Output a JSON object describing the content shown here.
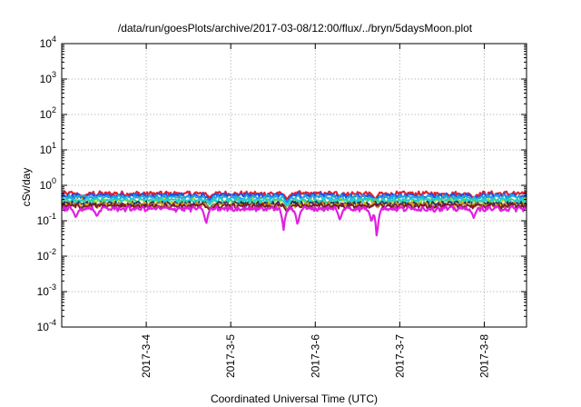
{
  "chart_data": {
    "type": "line",
    "title": "/data/run/goesPlots/archive/2017-03-08/12:00/flux/../bryn/5daysMoon.plot",
    "xlabel": "Coordinated Universal Time (UTC)",
    "ylabel": "cSv/day",
    "yscale": "log",
    "ylim": [
      0.0001,
      10000
    ],
    "y_ticks": [
      {
        "value": 10000,
        "base": "10",
        "exp": "4"
      },
      {
        "value": 1000,
        "base": "10",
        "exp": "3"
      },
      {
        "value": 100,
        "base": "10",
        "exp": "2"
      },
      {
        "value": 10,
        "base": "10",
        "exp": "1"
      },
      {
        "value": 1,
        "base": "10",
        "exp": "0"
      },
      {
        "value": 0.1,
        "base": "10",
        "exp": "-1"
      },
      {
        "value": 0.01,
        "base": "10",
        "exp": "-2"
      },
      {
        "value": 0.001,
        "base": "10",
        "exp": "-3"
      },
      {
        "value": 0.0001,
        "base": "10",
        "exp": "-4"
      }
    ],
    "xlim": [
      "2017-03-03 00:00",
      "2017-03-08 12:00"
    ],
    "x_ticks": [
      {
        "value": "2017-03-04 00:00",
        "label": "2017-3-4"
      },
      {
        "value": "2017-03-05 00:00",
        "label": "2017-3-5"
      },
      {
        "value": "2017-03-06 00:00",
        "label": "2017-3-6"
      },
      {
        "value": "2017-03-07 00:00",
        "label": "2017-3-7"
      },
      {
        "value": "2017-03-08 00:00",
        "label": "2017-3-8"
      }
    ],
    "grid": true,
    "series": [
      {
        "color": "#e8202a",
        "base": 0.58,
        "dips": [
          [
            "2017-03-03 06:00",
            0.42
          ],
          [
            "2017-03-04 18:00",
            0.45
          ],
          [
            "2017-03-05 16:00",
            0.4
          ],
          [
            "2017-03-06 17:00",
            0.4
          ],
          [
            "2017-03-07 21:00",
            0.42
          ]
        ]
      },
      {
        "color": "#2050e8",
        "base": 0.52,
        "dips": [
          [
            "2017-03-03 06:00",
            0.36
          ],
          [
            "2017-03-04 18:00",
            0.38
          ],
          [
            "2017-03-05 16:00",
            0.33
          ],
          [
            "2017-03-06 17:00",
            0.34
          ],
          [
            "2017-03-07 21:00",
            0.36
          ]
        ]
      },
      {
        "color": "#1ea8e0",
        "base": 0.46,
        "dips": [
          [
            "2017-03-04 18:00",
            0.34
          ],
          [
            "2017-03-05 16:00",
            0.3
          ],
          [
            "2017-03-06 17:00",
            0.31
          ]
        ]
      },
      {
        "color": "#a8d820",
        "base": 0.36,
        "dips": [
          [
            "2017-03-04 18:00",
            0.28
          ],
          [
            "2017-03-05 16:00",
            0.25
          ]
        ]
      },
      {
        "color": "#20d0c8",
        "base": 0.38,
        "dips": [
          [
            "2017-03-04 18:00",
            0.29
          ],
          [
            "2017-03-05 16:00",
            0.26
          ]
        ]
      },
      {
        "color": "#203060",
        "base": 0.3,
        "dips": [
          [
            "2017-03-04 18:00",
            0.22
          ],
          [
            "2017-03-05 16:00",
            0.2
          ]
        ]
      },
      {
        "color": "#d8a020",
        "base": 0.28,
        "dips": [
          [
            "2017-03-04 18:00",
            0.21
          ],
          [
            "2017-03-05 16:00",
            0.19
          ]
        ]
      },
      {
        "color": "#7a1a30",
        "base": 0.265,
        "dips": [
          [
            "2017-03-04 18:00",
            0.2
          ],
          [
            "2017-03-05 16:00",
            0.17
          ]
        ]
      },
      {
        "color": "#e020e0",
        "base": 0.22,
        "dips": [
          [
            "2017-03-03 04:00",
            0.12
          ],
          [
            "2017-03-03 10:00",
            0.13
          ],
          [
            "2017-03-04 17:00",
            0.075
          ],
          [
            "2017-03-05 15:00",
            0.055
          ],
          [
            "2017-03-05 19:00",
            0.07
          ],
          [
            "2017-03-06 07:00",
            0.1
          ],
          [
            "2017-03-06 16:00",
            0.09
          ],
          [
            "2017-03-06 17:30",
            0.022
          ],
          [
            "2017-03-07 21:00",
            0.12
          ]
        ]
      }
    ]
  }
}
